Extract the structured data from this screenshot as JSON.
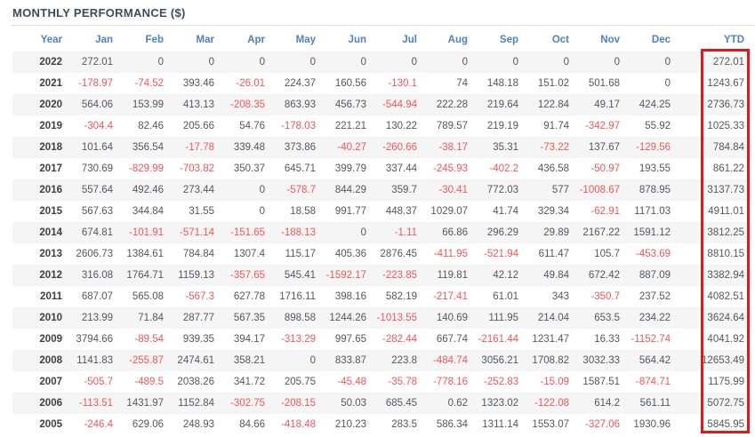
{
  "title": "MONTHLY PERFORMANCE ($)",
  "colors": {
    "title": "#3c4b60",
    "header_text": "#4e81c2",
    "positive_text": "#54575b",
    "negative_text": "#f95454",
    "year_text": "#3f3f3f",
    "row_stripe": "#f5f5f5",
    "divider": "#e3e3e3",
    "ytd_highlight_border": "#dc1a1a"
  },
  "table": {
    "columns": [
      "Year",
      "Jan",
      "Feb",
      "Mar",
      "Apr",
      "May",
      "Jun",
      "Jul",
      "Aug",
      "Sep",
      "Oct",
      "Nov",
      "Dec",
      "YTD"
    ],
    "rows": [
      {
        "year": "2022",
        "values": [
          "272.01",
          "0",
          "0",
          "0",
          "0",
          "0",
          "0",
          "0",
          "0",
          "0",
          "0",
          "0"
        ],
        "ytd": "272.01"
      },
      {
        "year": "2021",
        "values": [
          "-178.97",
          "-74.52",
          "393.46",
          "-26.01",
          "224.37",
          "160.56",
          "-130.1",
          "74",
          "148.18",
          "151.02",
          "501.68",
          "0"
        ],
        "ytd": "1243.67"
      },
      {
        "year": "2020",
        "values": [
          "564.06",
          "153.99",
          "413.13",
          "-208.35",
          "863.93",
          "456.73",
          "-544.94",
          "222.28",
          "219.64",
          "122.84",
          "49.17",
          "424.25"
        ],
        "ytd": "2736.73"
      },
      {
        "year": "2019",
        "values": [
          "-304.4",
          "82.46",
          "205.66",
          "54.76",
          "-178.03",
          "221.21",
          "130.22",
          "789.57",
          "219.19",
          "91.74",
          "-342.97",
          "55.92"
        ],
        "ytd": "1025.33"
      },
      {
        "year": "2018",
        "values": [
          "101.64",
          "356.54",
          "-17.78",
          "339.48",
          "373.86",
          "-40.27",
          "-260.66",
          "-38.17",
          "35.31",
          "-73.22",
          "137.67",
          "-129.56"
        ],
        "ytd": "784.84"
      },
      {
        "year": "2017",
        "values": [
          "730.69",
          "-829.99",
          "-703.82",
          "350.37",
          "645.71",
          "399.79",
          "337.44",
          "-245.93",
          "-402.2",
          "436.58",
          "-50.97",
          "193.55"
        ],
        "ytd": "861.22"
      },
      {
        "year": "2016",
        "values": [
          "557.64",
          "492.46",
          "273.44",
          "0",
          "-578.7",
          "844.29",
          "359.7",
          "-30.41",
          "772.03",
          "577",
          "-1008.67",
          "878.95"
        ],
        "ytd": "3137.73"
      },
      {
        "year": "2015",
        "values": [
          "567.63",
          "344.84",
          "31.55",
          "0",
          "18.58",
          "991.77",
          "448.37",
          "1029.07",
          "41.74",
          "329.34",
          "-62.91",
          "1171.03"
        ],
        "ytd": "4911.01"
      },
      {
        "year": "2014",
        "values": [
          "674.81",
          "-101.91",
          "-571.14",
          "-151.65",
          "-188.13",
          "0",
          "-1.11",
          "66.86",
          "296.29",
          "29.89",
          "2167.22",
          "1591.12"
        ],
        "ytd": "3812.25"
      },
      {
        "year": "2013",
        "values": [
          "2606.73",
          "1384.61",
          "784.84",
          "1307.4",
          "115.17",
          "405.36",
          "2876.45",
          "-411.95",
          "-521.94",
          "611.47",
          "105.7",
          "-453.69"
        ],
        "ytd": "8810.15"
      },
      {
        "year": "2012",
        "values": [
          "316.08",
          "1764.71",
          "1159.13",
          "-357.65",
          "545.41",
          "-1592.17",
          "-223.85",
          "119.81",
          "42.12",
          "49.84",
          "672.42",
          "887.09"
        ],
        "ytd": "3382.94"
      },
      {
        "year": "2011",
        "values": [
          "687.07",
          "565.08",
          "-567.3",
          "627.78",
          "1716.11",
          "398.16",
          "582.19",
          "-217.41",
          "61.01",
          "343",
          "-350.7",
          "237.52"
        ],
        "ytd": "4082.51"
      },
      {
        "year": "2010",
        "values": [
          "213.99",
          "71.84",
          "287.77",
          "567.35",
          "898.58",
          "1244.26",
          "-1013.55",
          "140.69",
          "111.95",
          "214.04",
          "653.5",
          "234.22"
        ],
        "ytd": "3624.64"
      },
      {
        "year": "2009",
        "values": [
          "3794.66",
          "-89.54",
          "939.35",
          "394.17",
          "-313.29",
          "997.65",
          "-282.44",
          "667.74",
          "-2161.44",
          "1231.47",
          "16.33",
          "-1152.74"
        ],
        "ytd": "4041.92"
      },
      {
        "year": "2008",
        "values": [
          "1141.83",
          "-255.87",
          "2474.61",
          "358.21",
          "0",
          "833.87",
          "223.8",
          "-484.74",
          "3056.21",
          "1708.82",
          "3032.33",
          "564.42"
        ],
        "ytd": "12653.49"
      },
      {
        "year": "2007",
        "values": [
          "-505.7",
          "-489.5",
          "2038.26",
          "341.72",
          "205.75",
          "-45.48",
          "-35.78",
          "-778.16",
          "-252.83",
          "-15.09",
          "1587.51",
          "-874.71"
        ],
        "ytd": "1175.99"
      },
      {
        "year": "2006",
        "values": [
          "-113.51",
          "1431.97",
          "1152.84",
          "-302.75",
          "-208.15",
          "50.03",
          "685.45",
          "0.62",
          "1323.02",
          "-122.08",
          "614.2",
          "561.11"
        ],
        "ytd": "5072.75"
      },
      {
        "year": "2005",
        "values": [
          "-246.4",
          "629.06",
          "248.93",
          "84.66",
          "-418.48",
          "210.23",
          "283.5",
          "586.34",
          "1311.14",
          "1553.07",
          "-327.06",
          "1930.96"
        ],
        "ytd": "5845.95"
      }
    ]
  }
}
